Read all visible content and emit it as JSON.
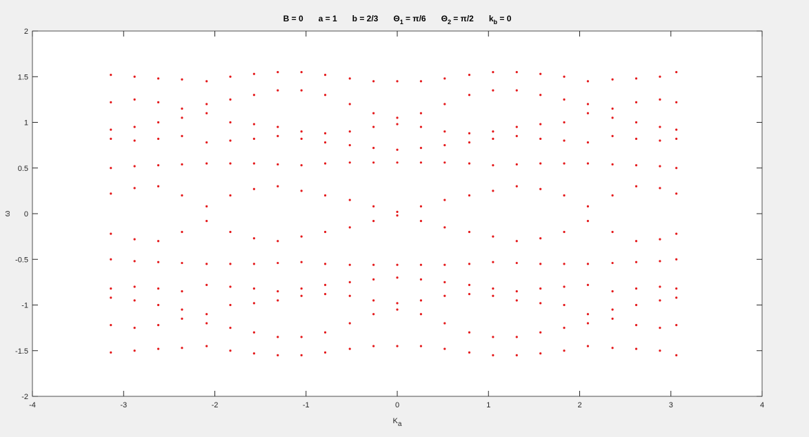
{
  "chart_data": {
    "type": "scatter",
    "color": "#e41a1c",
    "title": [
      {
        "text": "B = 0"
      },
      {
        "text": "a = 1"
      },
      {
        "text": "b = 2/3"
      },
      {
        "text": "Θ",
        "sub": "1",
        "rest": " = π/6"
      },
      {
        "text": "Θ",
        "sub": "2",
        "rest": " = π/2"
      },
      {
        "text": "k",
        "sub": "b",
        "rest": " = 0"
      }
    ],
    "xlabel": {
      "text": "K",
      "sub": "a"
    },
    "ylabel": "ω",
    "xlim": [
      -4,
      4
    ],
    "ylim": [
      -2,
      2
    ],
    "xticks": [
      -4,
      -3,
      -2,
      -1,
      0,
      1,
      2,
      3,
      4
    ],
    "yticks": [
      -2,
      -1.5,
      -1,
      -0.5,
      0,
      0.5,
      1,
      1.5,
      2
    ],
    "x": [
      -3.14,
      -2.88,
      -2.62,
      -2.36,
      -2.09,
      -1.83,
      -1.57,
      -1.31,
      -1.05,
      -0.79,
      -0.52,
      -0.26,
      0,
      0.26,
      0.52,
      0.79,
      1.05,
      1.31,
      1.57,
      1.83,
      2.09,
      2.36,
      2.62,
      2.88,
      3.06
    ],
    "values": [
      [
        1.52,
        1.22,
        0.92,
        0.82,
        0.5,
        0.22,
        -0.22,
        -0.5,
        -0.82,
        -0.92,
        -1.22,
        -1.52
      ],
      [
        1.5,
        1.25,
        0.95,
        0.8,
        0.52,
        0.28,
        -0.28,
        -0.52,
        -0.8,
        -0.95,
        -1.25,
        -1.5
      ],
      [
        1.48,
        1.22,
        1.0,
        0.82,
        0.53,
        0.3,
        -0.3,
        -0.53,
        -0.82,
        -1.0,
        -1.22,
        -1.48
      ],
      [
        1.47,
        1.15,
        1.05,
        0.85,
        0.54,
        0.2,
        -0.2,
        -0.54,
        -0.85,
        -1.05,
        -1.15,
        -1.47
      ],
      [
        1.45,
        1.1,
        1.2,
        0.78,
        0.55,
        0.08,
        -0.08,
        -0.55,
        -0.78,
        -1.2,
        -1.1,
        -1.45
      ],
      [
        1.5,
        1.25,
        1.0,
        0.8,
        0.55,
        0.2,
        -0.2,
        -0.55,
        -0.8,
        -1.0,
        -1.25,
        -1.5
      ],
      [
        1.53,
        1.3,
        0.98,
        0.82,
        0.55,
        0.27,
        -0.27,
        -0.55,
        -0.82,
        -0.98,
        -1.3,
        -1.53
      ],
      [
        1.55,
        1.35,
        0.95,
        0.85,
        0.54,
        0.3,
        -0.3,
        -0.54,
        -0.85,
        -0.95,
        -1.35,
        -1.55
      ],
      [
        1.55,
        1.35,
        0.9,
        0.82,
        0.53,
        0.25,
        -0.25,
        -0.53,
        -0.82,
        -0.9,
        -1.35,
        -1.55
      ],
      [
        1.52,
        1.3,
        0.88,
        0.78,
        0.55,
        0.2,
        -0.2,
        -0.55,
        -0.78,
        -0.88,
        -1.3,
        -1.52
      ],
      [
        1.48,
        1.2,
        0.9,
        0.75,
        0.56,
        0.15,
        -0.15,
        -0.56,
        -0.75,
        -0.9,
        -1.2,
        -1.48
      ],
      [
        1.45,
        1.1,
        0.95,
        0.72,
        0.56,
        0.08,
        -0.08,
        -0.56,
        -0.72,
        -0.95,
        -1.1,
        -1.45
      ],
      [
        1.45,
        1.05,
        0.98,
        0.7,
        0.56,
        0.02,
        -0.02,
        -0.56,
        -0.7,
        -0.98,
        -1.05,
        -1.45
      ],
      [
        1.45,
        1.1,
        0.95,
        0.72,
        0.56,
        0.08,
        -0.08,
        -0.56,
        -0.72,
        -0.95,
        -1.1,
        -1.45
      ],
      [
        1.48,
        1.2,
        0.9,
        0.75,
        0.56,
        0.15,
        -0.15,
        -0.56,
        -0.75,
        -0.9,
        -1.2,
        -1.48
      ],
      [
        1.52,
        1.3,
        0.88,
        0.78,
        0.55,
        0.2,
        -0.2,
        -0.55,
        -0.78,
        -0.88,
        -1.3,
        -1.52
      ],
      [
        1.55,
        1.35,
        0.9,
        0.82,
        0.53,
        0.25,
        -0.25,
        -0.53,
        -0.82,
        -0.9,
        -1.35,
        -1.55
      ],
      [
        1.55,
        1.35,
        0.95,
        0.85,
        0.54,
        0.3,
        -0.3,
        -0.54,
        -0.85,
        -0.95,
        -1.35,
        -1.55
      ],
      [
        1.53,
        1.3,
        0.98,
        0.82,
        0.55,
        0.27,
        -0.27,
        -0.55,
        -0.82,
        -0.98,
        -1.3,
        -1.53
      ],
      [
        1.5,
        1.25,
        1.0,
        0.8,
        0.55,
        0.2,
        -0.2,
        -0.55,
        -0.8,
        -1.0,
        -1.25,
        -1.5
      ],
      [
        1.45,
        1.1,
        1.2,
        0.78,
        0.55,
        0.08,
        -0.08,
        -0.55,
        -0.78,
        -1.2,
        -1.1,
        -1.45
      ],
      [
        1.47,
        1.15,
        1.05,
        0.85,
        0.54,
        0.2,
        -0.2,
        -0.54,
        -0.85,
        -1.05,
        -1.15,
        -1.47
      ],
      [
        1.48,
        1.22,
        1.0,
        0.82,
        0.53,
        0.3,
        -0.3,
        -0.53,
        -0.82,
        -1.0,
        -1.22,
        -1.48
      ],
      [
        1.5,
        1.25,
        0.95,
        0.8,
        0.52,
        0.28,
        -0.28,
        -0.52,
        -0.8,
        -0.95,
        -1.25,
        -1.5
      ],
      [
        1.55,
        1.22,
        0.92,
        0.82,
        0.5,
        0.22,
        -0.22,
        -0.5,
        -0.82,
        -0.92,
        -1.22,
        -1.55
      ]
    ]
  }
}
